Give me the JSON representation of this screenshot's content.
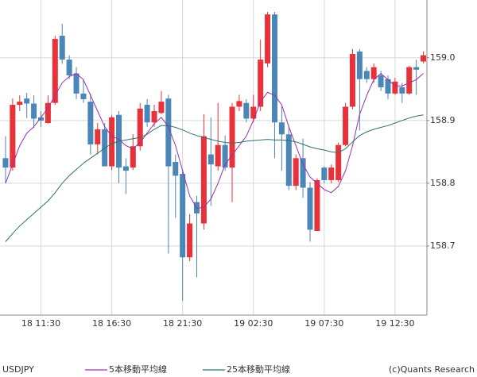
{
  "chart_data": {
    "type": "candlestick",
    "symbol": "USDJPY",
    "credit": "(c)Quants Research",
    "up_color": "#e8323a",
    "down_color": "#4a86b8",
    "grid": true,
    "categories": [
      null,
      null,
      null,
      null,
      null,
      "18 11:30",
      null,
      null,
      null,
      null,
      null,
      null,
      null,
      null,
      null,
      "18 16:30",
      null,
      null,
      null,
      null,
      null,
      null,
      null,
      null,
      null,
      "18 21:30",
      null,
      null,
      null,
      null,
      null,
      null,
      null,
      null,
      null,
      "19 02:30",
      null,
      null,
      null,
      null,
      null,
      null,
      null,
      null,
      null,
      "19 07:30",
      null,
      null,
      null,
      null,
      null,
      null,
      null,
      null,
      null,
      "19 12:30",
      null,
      null,
      null,
      null
    ],
    "open": [
      158.84,
      158.825,
      158.925,
      158.935,
      158.927,
      158.905,
      158.896,
      158.928,
      159.035,
      158.997,
      158.975,
      158.943,
      158.93,
      158.862,
      158.886,
      158.827,
      158.909,
      158.827,
      158.825,
      158.859,
      158.925,
      158.897,
      158.912,
      158.935,
      158.834,
      158.815,
      158.682,
      158.77,
      158.736,
      158.846,
      158.827,
      158.861,
      158.825,
      158.922,
      158.928,
      158.903,
      158.922,
      158.991,
      159.069,
      158.897,
      158.878,
      158.796,
      158.84,
      158.793,
      158.724,
      158.825,
      158.805,
      158.805,
      158.861,
      158.922,
      159.01,
      158.979,
      158.966,
      158.972,
      158.966,
      158.943,
      158.953,
      158.943,
      158.985,
      158.994
    ],
    "high": [
      158.875,
      158.935,
      158.94,
      158.944,
      158.94,
      158.915,
      158.94,
      159.035,
      159.054,
      159.004,
      158.985,
      158.966,
      158.943,
      158.896,
      158.896,
      158.909,
      158.915,
      158.84,
      158.878,
      158.928,
      158.934,
      158.925,
      158.947,
      158.941,
      158.846,
      158.821,
      158.751,
      158.78,
      158.91,
      158.905,
      158.928,
      158.876,
      158.928,
      158.941,
      158.934,
      158.941,
      159.029,
      159.073,
      159.073,
      158.922,
      158.891,
      158.846,
      158.871,
      158.802,
      158.808,
      158.827,
      158.83,
      158.865,
      158.928,
      159.014,
      159.014,
      158.985,
      158.991,
      158.979,
      158.972,
      158.968,
      158.96,
      158.987,
      158.997,
      159.01
    ],
    "low": [
      158.8,
      158.82,
      158.915,
      158.904,
      158.888,
      158.89,
      158.895,
      158.925,
      158.99,
      158.966,
      158.934,
      158.928,
      158.846,
      158.846,
      158.827,
      158.821,
      158.8,
      158.783,
      158.821,
      158.852,
      158.89,
      158.89,
      158.91,
      158.688,
      158.745,
      158.613,
      158.676,
      158.65,
      158.726,
      158.764,
      158.82,
      158.82,
      158.77,
      158.915,
      158.897,
      158.897,
      158.915,
      158.985,
      158.84,
      158.82,
      158.789,
      158.789,
      158.777,
      158.707,
      158.724,
      158.8,
      158.8,
      158.802,
      158.859,
      158.918,
      158.884,
      158.96,
      158.96,
      158.947,
      158.934,
      158.941,
      158.928,
      158.941,
      158.941,
      158.991
    ],
    "close": [
      158.825,
      158.925,
      158.93,
      158.927,
      158.903,
      158.9,
      158.928,
      159.03,
      158.997,
      158.972,
      158.943,
      158.934,
      158.862,
      158.886,
      158.827,
      158.905,
      158.825,
      158.82,
      158.859,
      158.919,
      158.897,
      158.915,
      158.93,
      158.827,
      158.812,
      158.682,
      158.736,
      158.752,
      158.875,
      158.83,
      158.861,
      158.825,
      158.922,
      158.931,
      158.903,
      158.922,
      158.997,
      159.069,
      158.897,
      158.878,
      158.796,
      158.84,
      158.793,
      158.726,
      158.805,
      158.805,
      158.825,
      158.861,
      158.922,
      159.006,
      158.966,
      158.966,
      158.985,
      158.953,
      158.943,
      158.962,
      158.943,
      158.985,
      158.981,
      159.004
    ],
    "series": [
      {
        "name": "5本移動平均線",
        "color": "#9b2fae",
        "values": [
          158.8,
          158.83,
          158.86,
          158.88,
          158.89,
          158.905,
          158.92,
          158.94,
          158.96,
          158.97,
          158.975,
          158.965,
          158.94,
          158.915,
          158.89,
          158.875,
          158.87,
          158.86,
          158.855,
          158.865,
          158.88,
          158.895,
          158.905,
          158.89,
          158.86,
          158.82,
          158.78,
          158.76,
          158.762,
          158.775,
          158.8,
          158.83,
          158.845,
          158.86,
          158.875,
          158.9,
          158.93,
          158.945,
          158.94,
          158.925,
          158.89,
          158.86,
          158.83,
          158.81,
          158.8,
          158.79,
          158.785,
          158.795,
          158.82,
          158.86,
          158.91,
          158.94,
          158.965,
          158.975,
          158.965,
          158.955,
          158.955,
          158.96,
          158.965,
          158.975
        ]
      },
      {
        "name": "25本移動平均線",
        "color": "#2f6f6f",
        "values": [
          158.707,
          158.72,
          158.732,
          158.742,
          158.752,
          158.762,
          158.772,
          158.785,
          158.8,
          158.812,
          158.822,
          158.832,
          158.84,
          158.848,
          158.856,
          158.863,
          158.867,
          158.869,
          158.871,
          158.873,
          158.878,
          158.886,
          158.892,
          158.892,
          158.889,
          158.885,
          158.88,
          158.876,
          158.873,
          158.87,
          158.867,
          158.865,
          158.864,
          158.865,
          158.867,
          158.868,
          158.869,
          158.87,
          158.869,
          158.869,
          158.868,
          158.866,
          158.862,
          158.858,
          158.855,
          158.853,
          158.85,
          158.849,
          158.855,
          158.866,
          158.876,
          158.882,
          158.886,
          158.889,
          158.892,
          158.896,
          158.9,
          158.904,
          158.907,
          158.909
        ]
      }
    ],
    "ylim": [
      158.59,
      159.092
    ],
    "yticks": [
      158.7,
      158.8,
      158.9,
      {
        "value": 159,
        "label": "159.0"
      }
    ]
  }
}
